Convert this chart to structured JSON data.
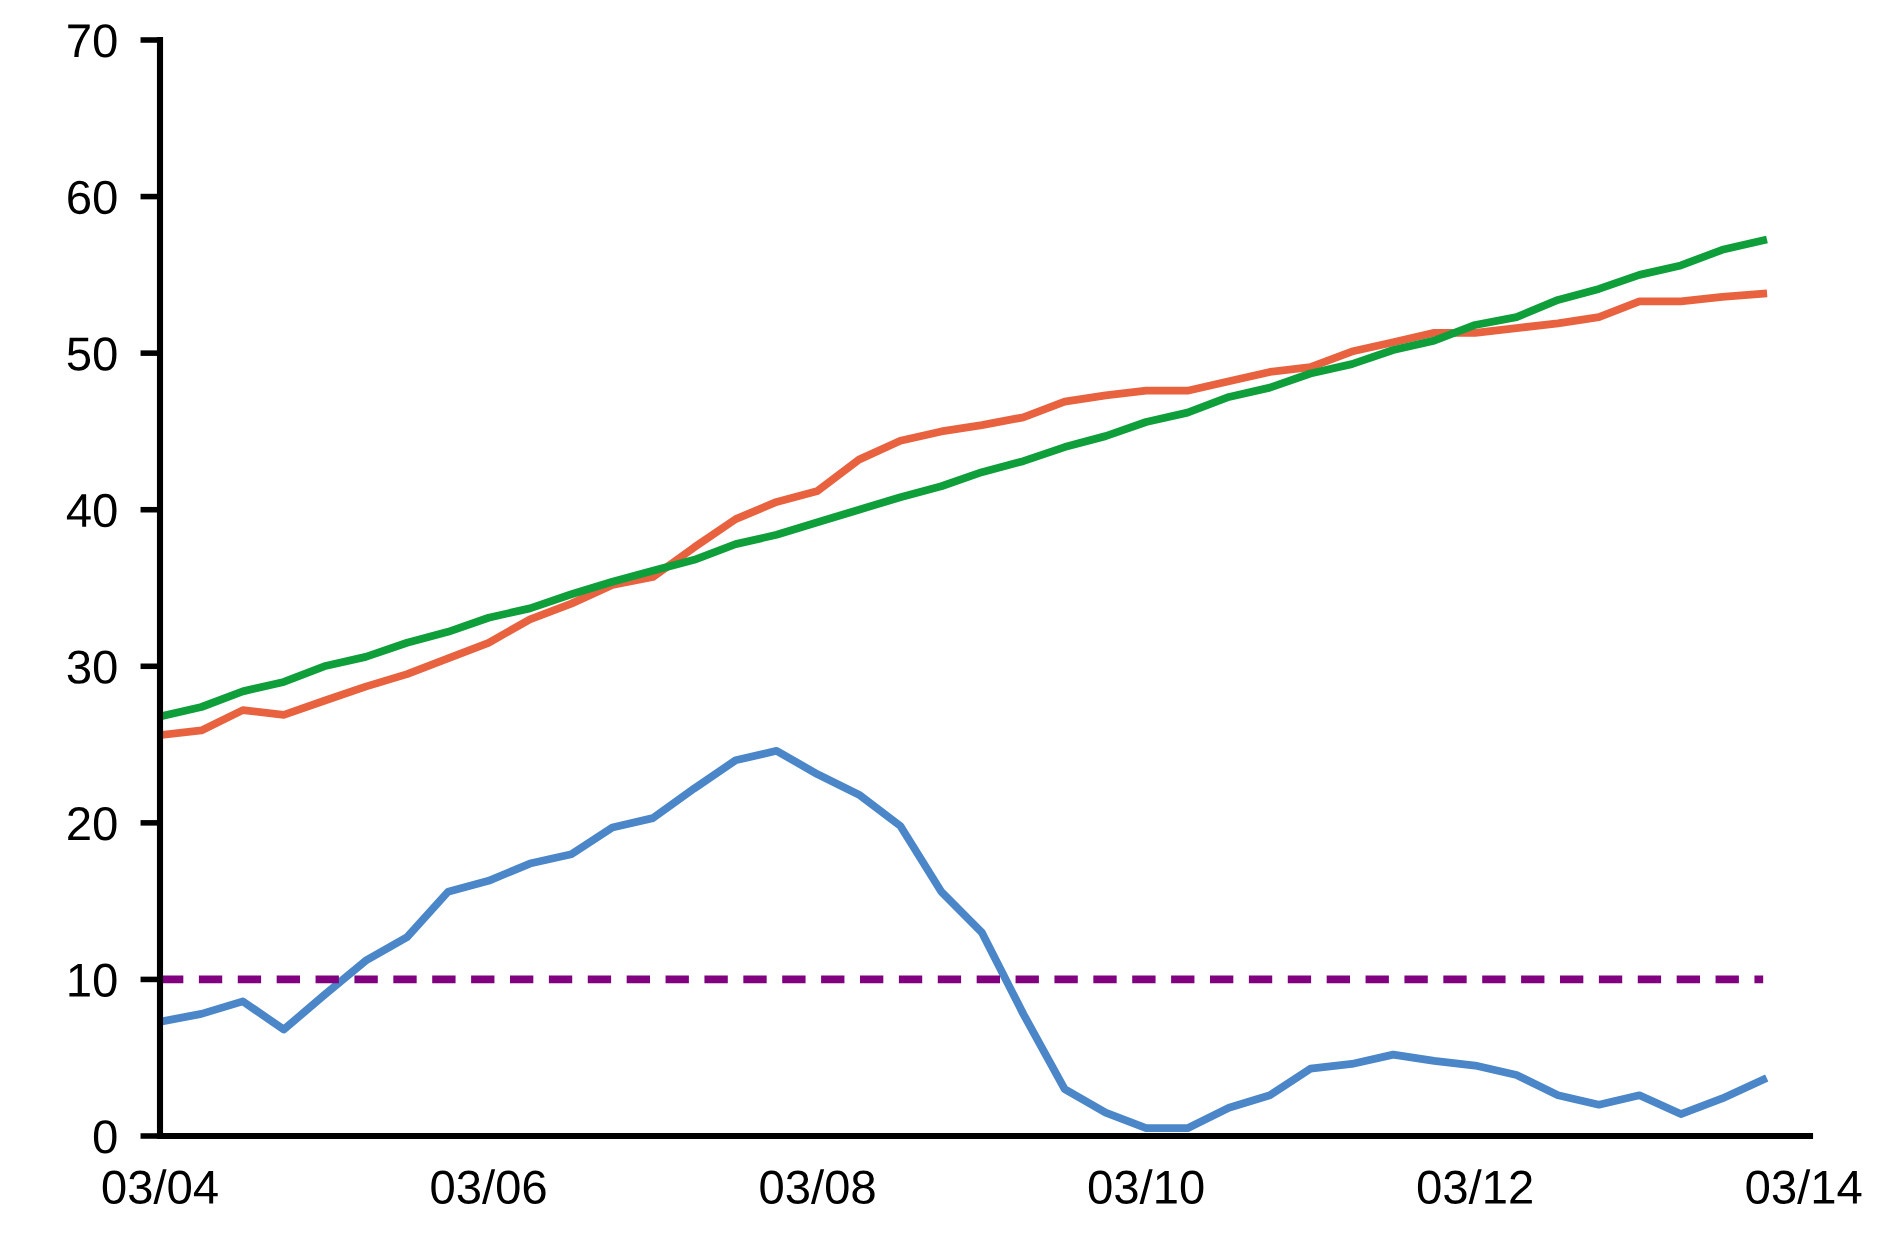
{
  "chart_data": {
    "type": "line",
    "x": [
      "2004-03",
      "2004-06",
      "2004-09",
      "2004-12",
      "2005-03",
      "2005-06",
      "2005-09",
      "2005-12",
      "2006-03",
      "2006-06",
      "2006-09",
      "2006-12",
      "2007-03",
      "2007-06",
      "2007-09",
      "2007-12",
      "2008-03",
      "2008-06",
      "2008-09",
      "2008-12",
      "2009-03",
      "2009-06",
      "2009-09",
      "2009-12",
      "2010-03",
      "2010-06",
      "2010-09",
      "2010-12",
      "2011-03",
      "2011-06",
      "2011-09",
      "2011-12",
      "2012-03",
      "2012-06",
      "2012-09",
      "2012-12",
      "2013-03",
      "2013-06",
      "2013-09",
      "2013-12"
    ],
    "series": [
      {
        "color": "#4a86c8",
        "values": [
          7.3,
          7.8,
          8.6,
          6.8,
          9.0,
          11.2,
          12.7,
          15.6,
          16.3,
          17.4,
          18.0,
          19.7,
          20.3,
          22.2,
          24.0,
          24.6,
          23.1,
          21.8,
          19.8,
          15.6,
          13.0,
          7.8,
          3.0,
          1.5,
          0.5,
          0.5,
          1.8,
          2.6,
          4.3,
          4.6,
          5.2,
          4.8,
          4.5,
          3.9,
          2.6,
          2.0,
          2.6,
          1.4,
          2.4,
          3.6
        ]
      },
      {
        "color": "#e8623f",
        "values": [
          25.6,
          25.9,
          27.2,
          26.9,
          27.8,
          28.7,
          29.5,
          30.5,
          31.5,
          33.0,
          34.0,
          35.2,
          35.7,
          37.6,
          39.4,
          40.5,
          41.2,
          43.2,
          44.4,
          45.0,
          45.4,
          45.9,
          46.9,
          47.3,
          47.6,
          47.6,
          48.2,
          48.8,
          49.1,
          50.1,
          50.7,
          51.3,
          51.3,
          51.6,
          51.9,
          52.3,
          53.3,
          53.3,
          53.6,
          53.8
        ]
      },
      {
        "color": "#0e9f3a",
        "values": [
          26.8,
          27.4,
          28.4,
          29.0,
          30.0,
          30.6,
          31.5,
          32.2,
          33.1,
          33.7,
          34.6,
          35.4,
          36.1,
          36.8,
          37.8,
          38.4,
          39.2,
          40.0,
          40.8,
          41.5,
          42.4,
          43.1,
          44.0,
          44.7,
          45.6,
          46.2,
          47.2,
          47.8,
          48.7,
          49.3,
          50.2,
          50.8,
          51.8,
          52.3,
          53.4,
          54.1,
          55.0,
          55.6,
          56.6,
          57.2
        ]
      }
    ],
    "xlim": [
      "2004-03",
      "2014-03-15"
    ],
    "xticks": [
      {
        "value": "2004-03",
        "label": "03/04"
      },
      {
        "value": "2006-03",
        "label": "03/06"
      },
      {
        "value": "2008-03",
        "label": "03/08"
      },
      {
        "value": "2010-03",
        "label": "03/10"
      },
      {
        "value": "2012-03",
        "label": "03/12"
      },
      {
        "value": "2014-03",
        "label": "03/14"
      }
    ],
    "ylim": [
      0,
      70
    ],
    "yticks": [
      0,
      10,
      20,
      30,
      40,
      50,
      60,
      70
    ],
    "ref_lines": [
      {
        "axis": "y",
        "value": 10,
        "color": "#800080",
        "line_style": "dashed"
      }
    ],
    "grid": false,
    "legend": false,
    "marker": "none",
    "line_style": "solid"
  }
}
